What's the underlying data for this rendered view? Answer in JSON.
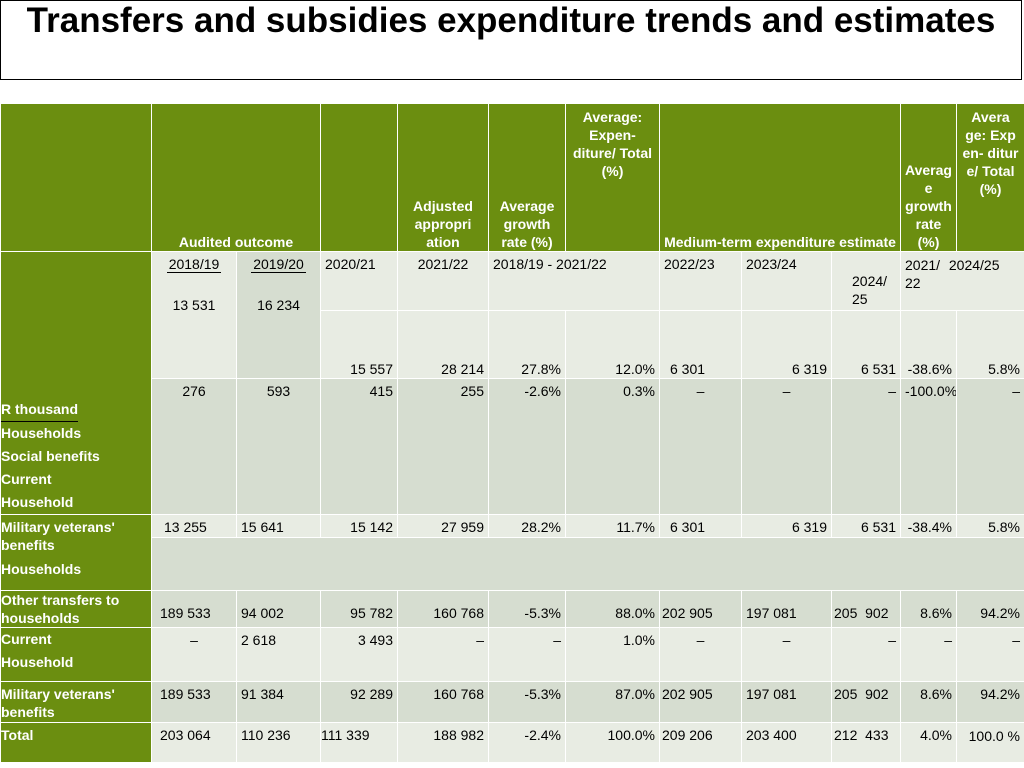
{
  "title": "Transfers and subsidies expenditure trends and estimates",
  "headers": {
    "audited_outcome": "Audited outcome",
    "adjusted_appropriation": "Adjusted appropri ation",
    "average_growth_rate": "Average growth rate (%)",
    "average_expenditure_total": "Average: Expen- diture/ Total (%)",
    "medium_term_estimate": "Medium-term expenditure estimate",
    "average_growth_rate_2": "Averag e growth rate (%)",
    "average_expenditure_total_2": "Avera ge: Exp en- ditur e/ Total (%)"
  },
  "years": {
    "y1": "2018/19",
    "y2": "2019/20",
    "y3": "2020/21",
    "y4": "2021/22",
    "range1": "2018/19 - 2021/22",
    "y5": "2022/23",
    "y6": "2023/24",
    "y7": "2024/ 25",
    "range2a": "2021/ 22",
    "range2b": "2024/25"
  },
  "row_labels": {
    "r_thousand": "R thousand",
    "households": "Households",
    "social_benefits": "Social benefits",
    "current": "Current",
    "household": "Household",
    "military_veterans_benefits": "Military veterans' benefits",
    "households_2": "Households",
    "other_transfers": "Other transfers to households",
    "current_2": "Current",
    "household_2": "Household",
    "military_veterans_benefits_2": "Military veterans' benefits",
    "total": "Total"
  },
  "values": {
    "r1": [
      "13 531",
      "16 234",
      "15 557",
      "28 214",
      "27.8%",
      "12.0%",
      "6 301",
      "6 319",
      "6 531",
      "-38.6%",
      "5.8%"
    ],
    "r2": [
      "276",
      "593",
      "415",
      "255",
      "-2.6%",
      "0.3%",
      "–",
      "–",
      "–",
      "-100.0%",
      "–"
    ],
    "r3": [
      "13 255",
      "15 641",
      "15 142",
      "27 959",
      "28.2%",
      "11.7%",
      "6 301",
      "6 319",
      "6 531",
      "-38.4%",
      "5.8%"
    ],
    "r4": [
      "189 533",
      "94 002",
      "95 782",
      "160 768",
      "-5.3%",
      "88.0%",
      "202 905",
      "197 081",
      "205  902",
      "8.6%",
      "94.2%"
    ],
    "r5": [
      "–",
      "2 618",
      "3 493",
      "–",
      "–",
      "1.0%",
      "–",
      "–",
      "–",
      "–",
      "–"
    ],
    "r6": [
      "189 533",
      "91 384",
      "92 289",
      "160 768",
      "-5.3%",
      "87.0%",
      "202 905",
      "197 081",
      "205  902",
      "8.6%",
      "94.2%"
    ],
    "r7": [
      "203 064",
      "110 236",
      "111 339",
      "188 982",
      "-2.4%",
      "100.0%",
      "209 206",
      "203 400",
      "212  433",
      "4.0%",
      "100.0 %"
    ]
  },
  "colors": {
    "header_green": "#6b8e10",
    "cell_gray": "#d6ddd0",
    "cell_light": "#e8ece3"
  }
}
